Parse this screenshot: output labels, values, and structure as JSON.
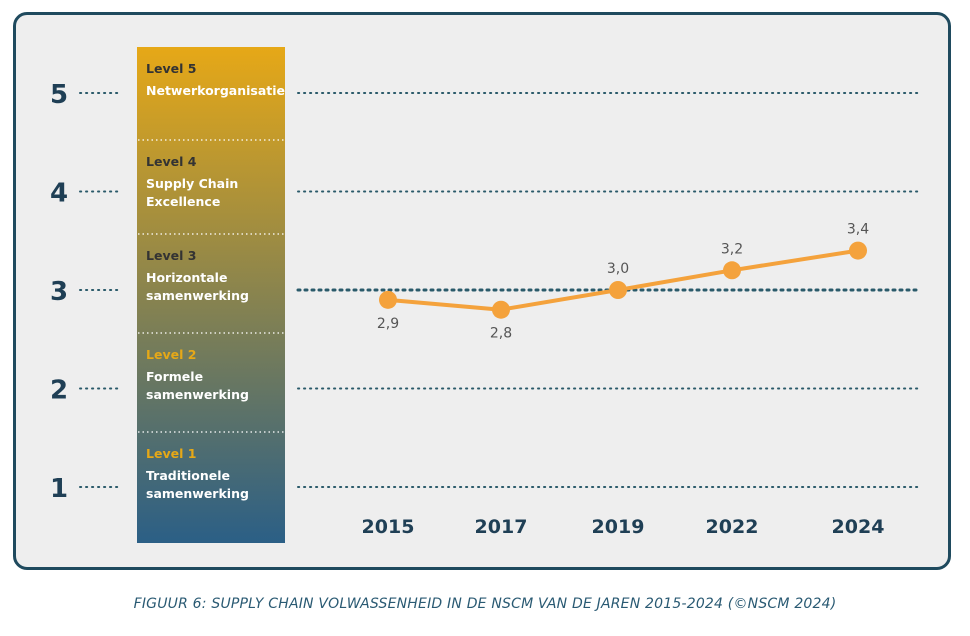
{
  "caption": "FIGUUR 6: SUPPLY CHAIN VOLWASSENHEID IN DE NSCM VAN DE JAREN 2015-2024 (©NSCM 2024)",
  "colors": {
    "frame_border": "#1f4a5e",
    "frame_bg": "#eeeeee",
    "grid_dots": "#2a5a6a",
    "axis_text": "#1f3f55",
    "line": "#f4a23c",
    "label": "#555555",
    "band_top": "#e6a817",
    "band_bottom": "#2b5f86",
    "level_label_light": "#e6a817",
    "level_label_dark": "#333333",
    "level_name": "#ffffff"
  },
  "levels": [
    {
      "level": 5,
      "label": "Level 5",
      "name": [
        "Netwerkorganisatie"
      ],
      "label_color": "dark"
    },
    {
      "level": 4,
      "label": "Level 4",
      "name": [
        "Supply Chain",
        "Excellence"
      ],
      "label_color": "dark"
    },
    {
      "level": 3,
      "label": "Level 3",
      "name": [
        "Horizontale",
        "samenwerking"
      ],
      "label_color": "dark"
    },
    {
      "level": 2,
      "label": "Level 2",
      "name": [
        "Formele",
        "samenwerking"
      ],
      "label_color": "light"
    },
    {
      "level": 1,
      "label": "Level 1",
      "name": [
        "Traditionele",
        "samenwerking"
      ],
      "label_color": "light"
    }
  ],
  "chart_data": {
    "type": "line",
    "x": [
      "2015",
      "2017",
      "2019",
      "2022",
      "2024"
    ],
    "series": [
      {
        "values": [
          2.9,
          2.8,
          3.0,
          3.2,
          3.4
        ],
        "labels": [
          "2,9",
          "2,8",
          "3,0",
          "3,2",
          "3,4"
        ]
      }
    ],
    "ylim": [
      1,
      5
    ],
    "yticks": [
      "1",
      "2",
      "3",
      "4",
      "5"
    ],
    "highlight_gridline": 3,
    "grid": "dotted"
  }
}
